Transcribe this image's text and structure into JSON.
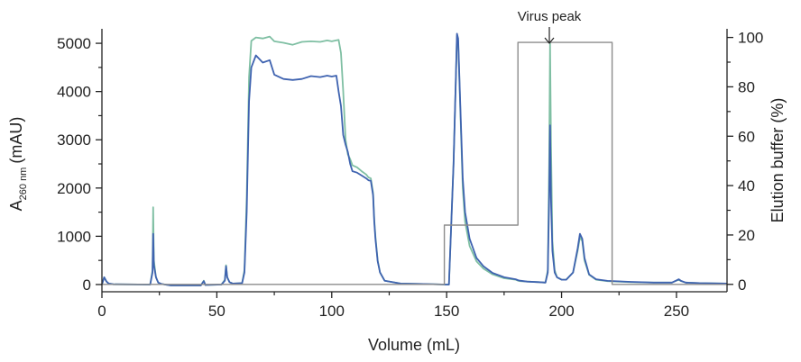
{
  "chart_data": {
    "type": "line",
    "xlabel": "Volume (mL)",
    "ylabel_main": "A",
    "ylabel_sub": "260 nm",
    "ylabel_unit": "(mAU)",
    "y2label": "Elution buffer (%)",
    "xlim": [
      0,
      272
    ],
    "ylim": [
      -150,
      5300
    ],
    "y2lim": [
      -3,
      103.5
    ],
    "xticks": [
      0,
      50,
      100,
      150,
      200,
      250
    ],
    "yticks": [
      0,
      1000,
      2000,
      3000,
      4000,
      5000
    ],
    "y2ticks": [
      0,
      20,
      40,
      60,
      80,
      100
    ],
    "annotation": {
      "text": "Virus peak",
      "x": 195
    },
    "series": [
      {
        "color": "#7fbfa3",
        "points": [
          [
            0,
            0
          ],
          [
            1,
            150
          ],
          [
            2,
            60
          ],
          [
            3,
            20
          ],
          [
            5,
            5
          ],
          [
            21,
            0
          ],
          [
            22,
            300
          ],
          [
            22.3,
            1600
          ],
          [
            22.6,
            500
          ],
          [
            23.5,
            150
          ],
          [
            24.5,
            40
          ],
          [
            26,
            10
          ],
          [
            30,
            -20
          ],
          [
            43,
            -20
          ],
          [
            44.3,
            80
          ],
          [
            45,
            -10
          ],
          [
            52,
            0
          ],
          [
            53.5,
            100
          ],
          [
            54,
            400
          ],
          [
            54.5,
            150
          ],
          [
            55.5,
            50
          ],
          [
            57,
            20
          ],
          [
            61,
            30
          ],
          [
            62,
            300
          ],
          [
            63,
            1800
          ],
          [
            64,
            4300
          ],
          [
            65,
            5050
          ],
          [
            67,
            5120
          ],
          [
            70,
            5100
          ],
          [
            73,
            5140
          ],
          [
            75,
            5040
          ],
          [
            79,
            5010
          ],
          [
            83,
            4970
          ],
          [
            87,
            5030
          ],
          [
            91,
            5040
          ],
          [
            95,
            5030
          ],
          [
            98,
            5060
          ],
          [
            100,
            5040
          ],
          [
            103,
            5070
          ],
          [
            104,
            4800
          ],
          [
            105,
            4000
          ],
          [
            106,
            3000
          ],
          [
            107,
            2700
          ],
          [
            108,
            2600
          ],
          [
            109,
            2470
          ],
          [
            111,
            2430
          ],
          [
            113,
            2350
          ],
          [
            115,
            2280
          ],
          [
            116,
            2220
          ],
          [
            117,
            2200
          ],
          [
            118,
            1900
          ],
          [
            118.5,
            1350
          ],
          [
            119,
            1000
          ],
          [
            120,
            500
          ],
          [
            121,
            250
          ],
          [
            123,
            80
          ],
          [
            130,
            20
          ],
          [
            140,
            10
          ],
          [
            150,
            0
          ],
          [
            151,
            0
          ],
          [
            153,
            2500
          ],
          [
            154,
            4300
          ],
          [
            154.5,
            5150
          ],
          [
            155,
            5050
          ],
          [
            156,
            3500
          ],
          [
            157,
            2000
          ],
          [
            158,
            1300
          ],
          [
            160,
            800
          ],
          [
            163,
            480
          ],
          [
            166,
            330
          ],
          [
            170,
            210
          ],
          [
            175,
            130
          ],
          [
            180,
            100
          ],
          [
            181,
            80
          ],
          [
            182,
            70
          ],
          [
            185,
            60
          ],
          [
            190,
            50
          ],
          [
            193,
            40
          ],
          [
            194,
            300
          ],
          [
            194.6,
            2500
          ],
          [
            195,
            5000
          ],
          [
            195.4,
            3000
          ],
          [
            196,
            900
          ],
          [
            197,
            300
          ],
          [
            198,
            150
          ],
          [
            200,
            100
          ],
          [
            202,
            100
          ],
          [
            205,
            250
          ],
          [
            207,
            700
          ],
          [
            208,
            980
          ],
          [
            209,
            900
          ],
          [
            210,
            500
          ],
          [
            212,
            200
          ],
          [
            215,
            100
          ],
          [
            220,
            70
          ],
          [
            230,
            50
          ],
          [
            240,
            40
          ],
          [
            248,
            40
          ],
          [
            250,
            80
          ],
          [
            251,
            100
          ],
          [
            252,
            70
          ],
          [
            254,
            40
          ],
          [
            260,
            30
          ],
          [
            272,
            20
          ]
        ]
      },
      {
        "color": "#3f63b0",
        "points": [
          [
            0,
            0
          ],
          [
            1,
            150
          ],
          [
            2,
            60
          ],
          [
            3,
            20
          ],
          [
            5,
            5
          ],
          [
            21,
            0
          ],
          [
            22,
            250
          ],
          [
            22.3,
            1050
          ],
          [
            22.6,
            400
          ],
          [
            23.5,
            150
          ],
          [
            24.5,
            40
          ],
          [
            26,
            10
          ],
          [
            30,
            -20
          ],
          [
            43,
            -20
          ],
          [
            44.3,
            70
          ],
          [
            45,
            -10
          ],
          [
            52,
            0
          ],
          [
            53.5,
            80
          ],
          [
            54,
            380
          ],
          [
            54.5,
            150
          ],
          [
            55.5,
            50
          ],
          [
            57,
            20
          ],
          [
            61,
            30
          ],
          [
            62,
            250
          ],
          [
            63,
            1500
          ],
          [
            64,
            3800
          ],
          [
            65,
            4500
          ],
          [
            67,
            4750
          ],
          [
            70,
            4600
          ],
          [
            73,
            4650
          ],
          [
            75,
            4350
          ],
          [
            79,
            4260
          ],
          [
            83,
            4240
          ],
          [
            87,
            4260
          ],
          [
            91,
            4320
          ],
          [
            95,
            4300
          ],
          [
            98,
            4330
          ],
          [
            100,
            4310
          ],
          [
            102,
            4330
          ],
          [
            103,
            4000
          ],
          [
            104,
            3700
          ],
          [
            105,
            3100
          ],
          [
            106,
            2900
          ],
          [
            107,
            2750
          ],
          [
            108,
            2500
          ],
          [
            109,
            2350
          ],
          [
            111,
            2320
          ],
          [
            113,
            2260
          ],
          [
            115,
            2200
          ],
          [
            116,
            2160
          ],
          [
            117,
            2150
          ],
          [
            118,
            1850
          ],
          [
            118.5,
            1300
          ],
          [
            119,
            950
          ],
          [
            120,
            480
          ],
          [
            121,
            250
          ],
          [
            123,
            80
          ],
          [
            130,
            20
          ],
          [
            140,
            10
          ],
          [
            150,
            0
          ],
          [
            151,
            0
          ],
          [
            153,
            2500
          ],
          [
            154,
            4300
          ],
          [
            154.5,
            5200
          ],
          [
            155,
            5100
          ],
          [
            156,
            3600
          ],
          [
            157,
            2200
          ],
          [
            158,
            1500
          ],
          [
            160,
            950
          ],
          [
            163,
            550
          ],
          [
            166,
            380
          ],
          [
            170,
            240
          ],
          [
            175,
            150
          ],
          [
            180,
            110
          ],
          [
            181,
            90
          ],
          [
            182,
            80
          ],
          [
            185,
            60
          ],
          [
            190,
            50
          ],
          [
            193,
            40
          ],
          [
            194,
            250
          ],
          [
            194.6,
            1800
          ],
          [
            195,
            3300
          ],
          [
            195.4,
            1800
          ],
          [
            196,
            700
          ],
          [
            197,
            250
          ],
          [
            198,
            150
          ],
          [
            200,
            100
          ],
          [
            202,
            100
          ],
          [
            205,
            250
          ],
          [
            207,
            750
          ],
          [
            208,
            1050
          ],
          [
            209,
            950
          ],
          [
            210,
            550
          ],
          [
            212,
            210
          ],
          [
            215,
            110
          ],
          [
            220,
            75
          ],
          [
            230,
            55
          ],
          [
            240,
            40
          ],
          [
            248,
            40
          ],
          [
            250,
            85
          ],
          [
            251,
            110
          ],
          [
            252,
            75
          ],
          [
            254,
            40
          ],
          [
            260,
            30
          ],
          [
            272,
            20
          ]
        ]
      },
      {
        "color": "#8c8c8c",
        "axis": "right",
        "points": [
          [
            0,
            0
          ],
          [
            149,
            0
          ],
          [
            149,
            24
          ],
          [
            181,
            24
          ],
          [
            181,
            98
          ],
          [
            222,
            98
          ],
          [
            222,
            0
          ],
          [
            272,
            0
          ]
        ]
      }
    ]
  }
}
